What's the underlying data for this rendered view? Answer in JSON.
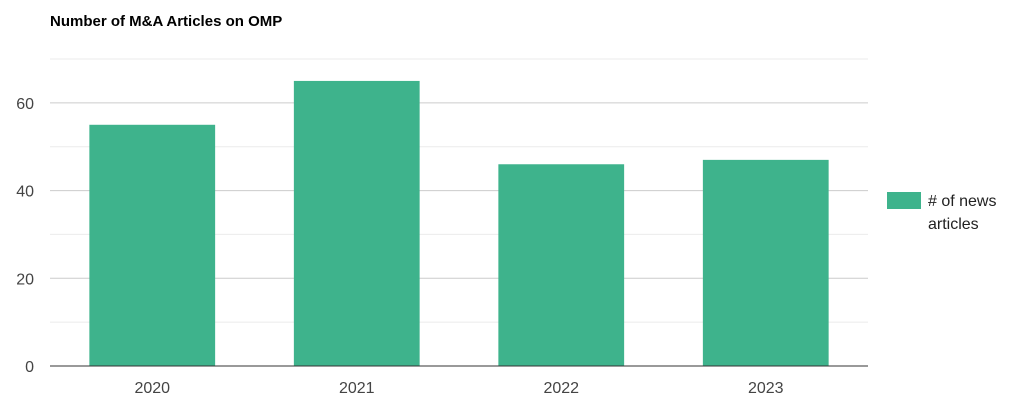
{
  "chart_data": {
    "type": "bar",
    "title": "Number of M&A Articles on OMP",
    "xlabel": "",
    "ylabel": "",
    "categories": [
      "2020",
      "2021",
      "2022",
      "2023"
    ],
    "series": [
      {
        "name": "# of news articles",
        "values": [
          55,
          65,
          46,
          47
        ],
        "color": "#3eb38c"
      }
    ],
    "ylim": [
      0,
      70
    ],
    "yticks": [
      0,
      20,
      40,
      60
    ],
    "grid": true,
    "legend_position": "right"
  }
}
